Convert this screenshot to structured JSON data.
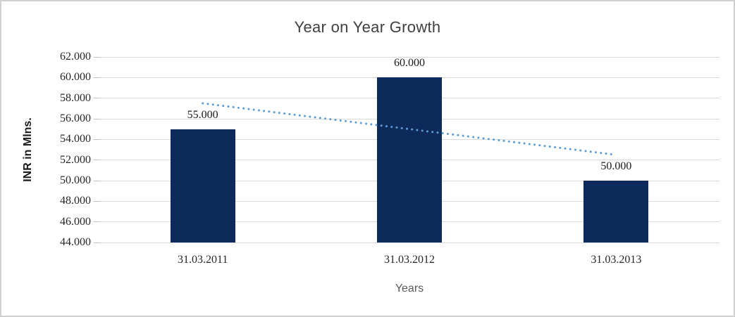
{
  "frame": {
    "background": "#FFFFFF",
    "border_color": "#CFCFCF"
  },
  "chart_data": {
    "type": "bar",
    "title": "Year on Year Growth",
    "xlabel": "Years",
    "ylabel": "INR in Mlns.",
    "categories": [
      "31.03.2011",
      "31.03.2012",
      "31.03.2013"
    ],
    "values": [
      55000,
      60000,
      50000
    ],
    "data_labels": [
      "55.000",
      "60.000",
      "50.000"
    ],
    "y_ticks": [
      "62.000",
      "60.000",
      "58.000",
      "56.000",
      "54.000",
      "52.000",
      "50.000",
      "48.000",
      "46.000",
      "44.000"
    ],
    "ylim": [
      44000,
      62000
    ],
    "y_tick_step": 2000,
    "grid": true,
    "legend": false,
    "bar_color": "#0E2A5B",
    "trendline": {
      "type": "linear",
      "style": "dotted",
      "color": "#5B9BD5",
      "start_value": 57500,
      "end_value": 52500
    }
  },
  "styles": {
    "title_color": "#404040",
    "tick_label_color": "#262626",
    "xlabel_color": "#595959",
    "ylabel_color": "#1A1A1A",
    "gridline_color": "#D9D9D9",
    "tick_mark_color": "#BFBFBF"
  }
}
